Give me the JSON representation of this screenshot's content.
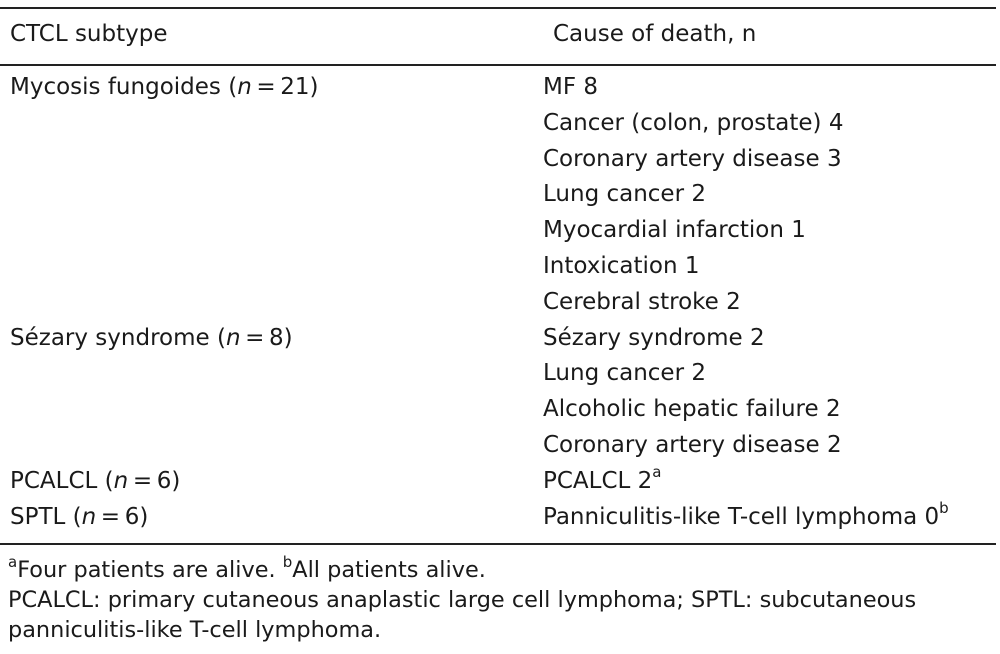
{
  "table": {
    "headers": {
      "subtype": "CTCL subtype",
      "cause": "Cause of death, n"
    },
    "groups": [
      {
        "name": "Mycosis fungoides",
        "n_label": "n",
        "n_value": "21",
        "causes": [
          {
            "text": "MF 8",
            "sup": ""
          },
          {
            "text": "Cancer (colon, prostate) 4",
            "sup": ""
          },
          {
            "text": "Coronary artery disease 3",
            "sup": ""
          },
          {
            "text": "Lung cancer 2",
            "sup": ""
          },
          {
            "text": "Myocardial infarction 1",
            "sup": ""
          },
          {
            "text": "Intoxication 1",
            "sup": ""
          },
          {
            "text": "Cerebral stroke 2",
            "sup": ""
          }
        ]
      },
      {
        "name": "Sézary syndrome",
        "n_label": "n",
        "n_value": "8",
        "causes": [
          {
            "text": "Sézary syndrome 2",
            "sup": ""
          },
          {
            "text": "Lung cancer 2",
            "sup": ""
          },
          {
            "text": "Alcoholic hepatic failure 2",
            "sup": ""
          },
          {
            "text": "Coronary artery disease 2",
            "sup": ""
          }
        ]
      },
      {
        "name": "PCALCL",
        "n_label": "n",
        "n_value": "6",
        "causes": [
          {
            "text": "PCALCL 2",
            "sup": "a"
          }
        ]
      },
      {
        "name": "SPTL",
        "n_label": "n",
        "n_value": "6",
        "causes": [
          {
            "text": "Panniculitis-like T-cell lymphoma 0",
            "sup": "b"
          }
        ]
      }
    ]
  },
  "footnotes": {
    "note_a_marker": "a",
    "note_a_text": "Four patients are alive.",
    "note_b_marker": "b",
    "note_b_text": "All patients alive.",
    "abbreviations": "PCALCL: primary cutaneous anaplastic large cell lymphoma; SPTL: subcutaneous panniculitis-like T-cell lymphoma."
  }
}
